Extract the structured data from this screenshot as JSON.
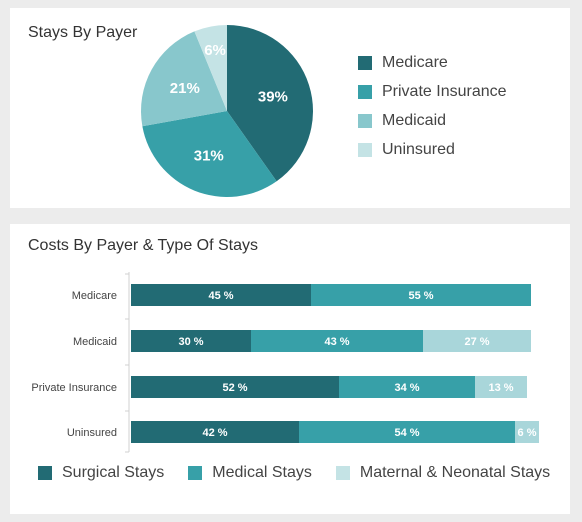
{
  "colors": {
    "dark_teal": "#226b74",
    "teal": "#37a0a8",
    "light_teal": "#88c7cc",
    "pale_teal": "#c4e3e5"
  },
  "chart_data": [
    {
      "type": "pie",
      "title": "Stays By Payer",
      "legend_position": "right",
      "slices": [
        {
          "label": "Medicare",
          "value": 39,
          "display": "39%",
          "color": "#226b74"
        },
        {
          "label": "Private Insurance",
          "value": 31,
          "display": "31%",
          "color": "#37a0a8"
        },
        {
          "label": "Medicaid",
          "value": 21,
          "display": "21%",
          "color": "#88c7cc"
        },
        {
          "label": "Uninsured",
          "value": 6,
          "display": "6%",
          "color": "#c4e3e5"
        }
      ]
    },
    {
      "type": "bar",
      "orientation": "horizontal",
      "stacked": true,
      "title": "Costs By Payer & Type Of Stays",
      "legend_position": "bottom",
      "categories": [
        "Medicare",
        "Medicaid",
        "Private Insurance",
        "Uninsured"
      ],
      "series": [
        {
          "name": "Surgical Stays",
          "color": "#226b74",
          "values": [
            45,
            30,
            52,
            42
          ],
          "labels": [
            "45 %",
            "30 %",
            "52 %",
            "42 %"
          ]
        },
        {
          "name": "Medical Stays",
          "color": "#37a0a8",
          "values": [
            55,
            43,
            34,
            54
          ],
          "labels": [
            "55 %",
            "43 %",
            "34 %",
            "54 %"
          ]
        },
        {
          "name": "Maternal & Neonatal Stays",
          "color": "#a9d6da",
          "values": [
            0,
            27,
            13,
            6
          ],
          "labels": [
            "",
            "27 %",
            "13 %",
            "6 %"
          ]
        }
      ]
    }
  ]
}
